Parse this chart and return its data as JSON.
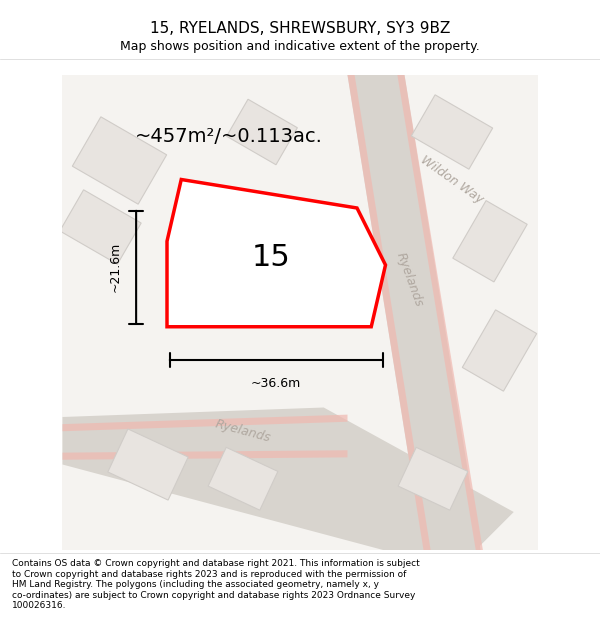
{
  "title": "15, RYELANDS, SHREWSBURY, SY3 9BZ",
  "subtitle": "Map shows position and indicative extent of the property.",
  "area_text": "~457m²/~0.113ac.",
  "dimension_width": "~36.6m",
  "dimension_height": "~21.6m",
  "property_number": "15",
  "footer_text": "Contains OS data © Crown copyright and database right 2021. This information is subject to Crown copyright and database rights 2023 and is reproduced with the permission of HM Land Registry. The polygons (including the associated geometry, namely x, y co-ordinates) are subject to Crown copyright and database rights 2023 Ordnance Survey 100026316.",
  "bg_color": "#f0eeec",
  "map_bg": "#f5f3f0",
  "road_color": "#d8d4ce",
  "road_outline": "#c8c4be",
  "building_color": "#e8e4e0",
  "building_outline": "#d0ccc8",
  "highlight_color": "#ff0000",
  "highlight_fill": "#ffffff",
  "pink_road_color": "#f0b8b0",
  "street_label_color": "#b0a8a0",
  "wildon_way_label": "Wildon Way",
  "ryelands_label1": "Ryelands",
  "ryelands_label2": "Ryelands"
}
